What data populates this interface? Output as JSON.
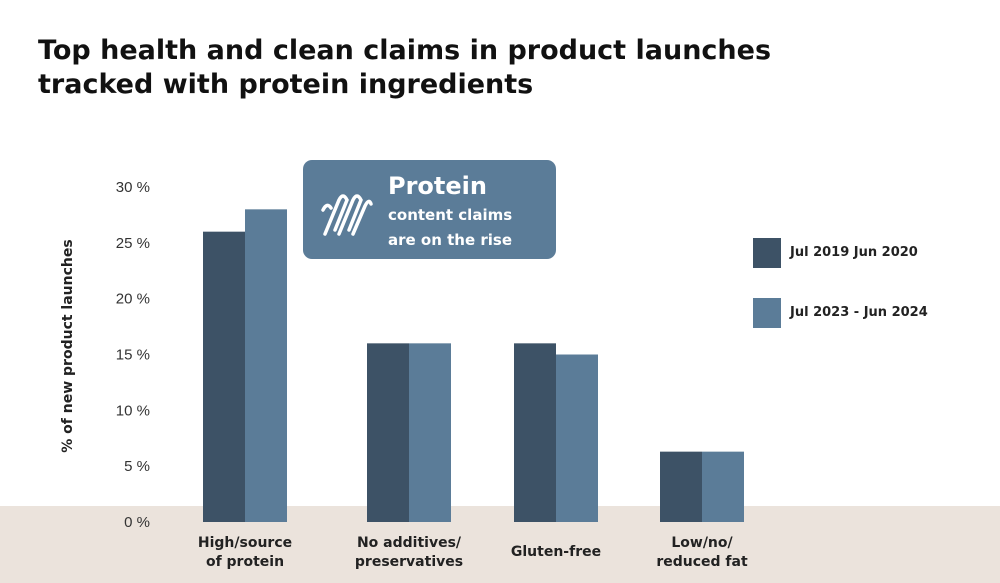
{
  "title": {
    "line1": "Top health and clean claims in product launches",
    "line2": "tracked with protein ingredients"
  },
  "callout": {
    "headline": "Protein",
    "line1": "content claims",
    "line2": "are on the rise",
    "icon": "protein-helix-icon"
  },
  "colors": {
    "series1": "#3d5266",
    "series2": "#5b7c98",
    "floor": "#ebe3dc",
    "callout": "#5b7c98"
  },
  "chart_data": {
    "type": "bar",
    "title": "Top health and clean claims in product launches tracked with protein ingredients",
    "xlabel": "",
    "ylabel": "% of new product launches",
    "ylim": [
      0,
      30
    ],
    "yticks": [
      0,
      5,
      10,
      15,
      20,
      25,
      30
    ],
    "ytick_labels": [
      "0 %",
      "5 %",
      "10 %",
      "15 %",
      "20 %",
      "25 %",
      "30 %"
    ],
    "categories": [
      [
        "High/source",
        "of protein"
      ],
      [
        "No additives/",
        "preservatives"
      ],
      [
        "Gluten-free"
      ],
      [
        "Low/no/",
        "reduced fat"
      ]
    ],
    "series": [
      {
        "name": "Jul 2019 Jun 2020",
        "values": [
          26,
          16,
          16,
          6.3
        ]
      },
      {
        "name": "Jul 2023 - Jun 2024",
        "values": [
          28,
          16,
          15,
          6.3
        ]
      }
    ],
    "legend": "right",
    "grid": false
  }
}
